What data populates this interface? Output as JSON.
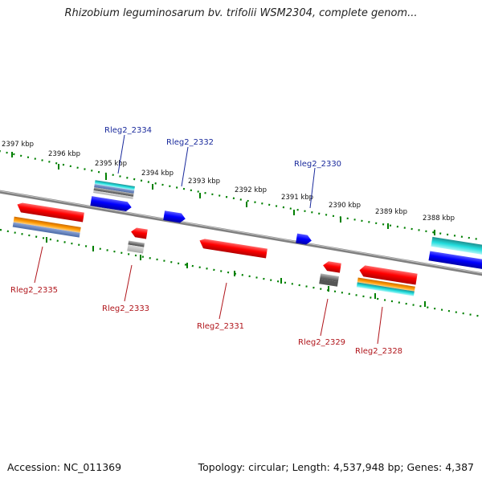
{
  "title": "Rhizobium leguminosarum bv. trifolii WSM2304, complete genom...",
  "footer": {
    "accession": "Accession: NC_011369",
    "summary": "Topology: circular; Length: 4,537,948 bp; Genes: 4,387"
  },
  "kbp_labels": [
    "2397 kbp",
    "2396 kbp",
    "2395 kbp",
    "2394 kbp",
    "2393 kbp",
    "2392 kbp",
    "2391 kbp",
    "2390 kbp",
    "2389 kbp",
    "2388 kbp"
  ],
  "gene_labels": {
    "top": [
      "Rleg2_2334",
      "Rleg2_2332",
      "Rleg2_2330"
    ],
    "bottom": [
      "Rleg2_2335",
      "Rleg2_2333",
      "Rleg2_2331",
      "Rleg2_2329",
      "Rleg2_2328"
    ]
  },
  "colors": {
    "cds": "#ff0000",
    "gene_forward": "#0000ff",
    "trna": "#00cccc",
    "orange_feature": "#ff9900",
    "grey_feature": "#888888",
    "backbone": "#808080",
    "tick": "#008000"
  }
}
